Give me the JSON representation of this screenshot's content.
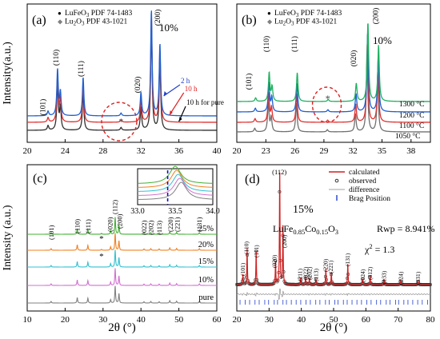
{
  "chart_data": [
    {
      "type": "line",
      "panel_label": "(a)",
      "xlabel": "",
      "ylabel": "Intensity(a.u.)",
      "xlim": [
        20,
        40
      ],
      "xticks": [
        20,
        24,
        28,
        32,
        36,
        40
      ],
      "legend": [
        {
          "marker": "●",
          "text": "LuFeO",
          "sub": "3",
          "rest": " PDF 74-1483",
          "color": "#000000"
        },
        {
          "marker": "◆",
          "text": "Lu",
          "sub": "2",
          "rest": "O",
          "sub2": "3",
          "rest2": " PDF 43-1021",
          "color": "#808080"
        }
      ],
      "legend_position": "top-left",
      "annotation": "10%",
      "series": [
        {
          "name": "10 h for pure",
          "color": "#303030",
          "offset": 0.0,
          "scale": 1.0
        },
        {
          "name": "10 h",
          "color": "#e03030",
          "offset": 0.05,
          "scale": 1.0
        },
        {
          "name": "2 h",
          "color": "#2060d0",
          "offset": 0.1,
          "scale": 1.0
        }
      ],
      "peaks": [
        {
          "x": 22.2,
          "h": 0.05,
          "label": "(101)"
        },
        {
          "x": 23.2,
          "h": 0.5,
          "label": "(110)"
        },
        {
          "x": 23.5,
          "h": 0.25,
          "label": ""
        },
        {
          "x": 25.9,
          "h": 0.42,
          "label": "(111)"
        },
        {
          "x": 29.9,
          "h": 0.03,
          "label": "*"
        },
        {
          "x": 32.0,
          "h": 0.25,
          "label": "(020)"
        },
        {
          "x": 33.1,
          "h": 1.15,
          "label": ""
        },
        {
          "x": 34.0,
          "h": 0.78,
          "label": "(200)"
        }
      ],
      "series_labels": [
        "2 h",
        "10 h",
        "10 h for pure"
      ]
    },
    {
      "type": "line",
      "panel_label": "(b)",
      "xlabel": "",
      "ylabel": "",
      "xlim": [
        20,
        40
      ],
      "xticks": [
        20,
        23,
        26,
        29,
        32,
        35,
        38
      ],
      "legend": [
        {
          "marker": "●",
          "text": "LuFeO",
          "sub": "3",
          "rest": " PDF 74-1483",
          "color": "#000000"
        },
        {
          "marker": "◆",
          "text": "Lu",
          "sub": "2",
          "rest": "O",
          "sub2": "3",
          "rest2": " PDF 43-1021",
          "color": "#808080"
        }
      ],
      "legend_position": "top-left",
      "annotation": "10%",
      "series": [
        {
          "name": "1050 °C",
          "color": "#707070"
        },
        {
          "name": "1100 °C",
          "color": "#e03030"
        },
        {
          "name": "1200 °C",
          "color": "#2060d0"
        },
        {
          "name": "1300 °C",
          "color": "#20b060"
        }
      ],
      "peaks": [
        {
          "x": 21.9,
          "h": 0.05,
          "label": "(101)"
        },
        {
          "x": 23.3,
          "h": 0.4,
          "label": "(110)"
        },
        {
          "x": 23.6,
          "h": 0.2,
          "label": ""
        },
        {
          "x": 26.2,
          "h": 0.4,
          "label": "(111)"
        },
        {
          "x": 29.4,
          "h": 0.03,
          "label": "*"
        },
        {
          "x": 32.3,
          "h": 0.25,
          "label": "(020)"
        },
        {
          "x": 33.5,
          "h": 1.1,
          "label": ""
        },
        {
          "x": 34.6,
          "h": 0.78,
          "label": "(200)"
        }
      ]
    },
    {
      "type": "line",
      "panel_label": "(c)",
      "xlabel": "2θ (°)",
      "ylabel": "Intensity (a.u.)",
      "xlim": [
        10,
        60
      ],
      "xticks": [
        10,
        20,
        30,
        40,
        50,
        60
      ],
      "inset": {
        "xlim": [
          33.0,
          34.0
        ],
        "xticks": [
          33.0,
          33.5,
          34.0
        ],
        "dashed_line_x": 33.4
      },
      "series": [
        {
          "name": "pure",
          "color": "#808080"
        },
        {
          "name": "10%",
          "color": "#d070d0"
        },
        {
          "name": "15%",
          "color": "#30c0d0"
        },
        {
          "name": "20%",
          "color": "#f08020"
        },
        {
          "name": "25%",
          "color": "#40b030"
        }
      ],
      "peaks": [
        {
          "x": 16.3,
          "h": 0.12,
          "label": "(101)"
        },
        {
          "x": 23.2,
          "h": 0.4,
          "label": "(110)"
        },
        {
          "x": 26.0,
          "h": 0.36,
          "label": "(111)"
        },
        {
          "x": 29.6,
          "h": 0.06,
          "label": "*"
        },
        {
          "x": 32.0,
          "h": 0.25,
          "label": "(020)"
        },
        {
          "x": 33.2,
          "h": 1.0,
          "label": "(112)"
        },
        {
          "x": 34.2,
          "h": 0.55,
          "label": "(200)"
        },
        {
          "x": 40.8,
          "h": 0.1,
          "label": "(022)"
        },
        {
          "x": 42.6,
          "h": 0.12,
          "label": "(202)"
        },
        {
          "x": 44.8,
          "h": 0.1,
          "label": "(113)"
        },
        {
          "x": 47.6,
          "h": 0.18,
          "label": "(220)"
        },
        {
          "x": 49.4,
          "h": 0.14,
          "label": "(221)"
        },
        {
          "x": 55.4,
          "h": 0.12,
          "label": "(131)"
        }
      ]
    },
    {
      "type": "scatter",
      "panel_label": "(d)",
      "xlabel": "2θ (°)",
      "ylabel": "",
      "xlim": [
        20,
        80
      ],
      "xticks": [
        20,
        30,
        40,
        50,
        60,
        70,
        80
      ],
      "legend": [
        "calculated",
        "observed",
        "difference",
        "Brag Position"
      ],
      "legend_colors": [
        "#d02020",
        "#303030",
        "#a0a0a0",
        "#2040d0"
      ],
      "legend_position": "top-right",
      "annotation": "15%",
      "formula": {
        "pre": "LuFe",
        "sub1": "0.85",
        "mid": "Co",
        "sub2": "0.15",
        "mid2": "O",
        "sub3": "3"
      },
      "rwp": "Rwp = 8.941%",
      "chi": "χ",
      "chi_sup": "2",
      "chi_val": " = 1.3",
      "peaks": [
        {
          "x": 21.9,
          "h": 0.09,
          "label": "(101)"
        },
        {
          "x": 23.2,
          "h": 0.32,
          "label": "(110)"
        },
        {
          "x": 26.0,
          "h": 0.29,
          "label": "(111)"
        },
        {
          "x": 32.0,
          "h": 0.2,
          "label": "(020)"
        },
        {
          "x": 33.3,
          "h": 1.0,
          "label": "(112)"
        },
        {
          "x": 34.3,
          "h": 0.52,
          "label": "(200)"
        },
        {
          "x": 39.8,
          "h": 0.06,
          "label": "(211)"
        },
        {
          "x": 41.3,
          "h": 0.07,
          "label": "(022)"
        },
        {
          "x": 42.5,
          "h": 0.06,
          "label": "(202)"
        },
        {
          "x": 44.5,
          "h": 0.05,
          "label": "(113)"
        },
        {
          "x": 47.6,
          "h": 0.14,
          "label": "(220)"
        },
        {
          "x": 49.3,
          "h": 0.11,
          "label": "(221)"
        },
        {
          "x": 54.4,
          "h": 0.18,
          "label": "(131)"
        },
        {
          "x": 59.0,
          "h": 0.05,
          "label": "(024)"
        },
        {
          "x": 61.3,
          "h": 0.08,
          "label": "(312)"
        },
        {
          "x": 65.6,
          "h": 0.05,
          "label": "(133)"
        },
        {
          "x": 70.8,
          "h": 0.04,
          "label": "(224)"
        },
        {
          "x": 76.2,
          "h": 0.03,
          "label": "(331)"
        }
      ]
    }
  ]
}
